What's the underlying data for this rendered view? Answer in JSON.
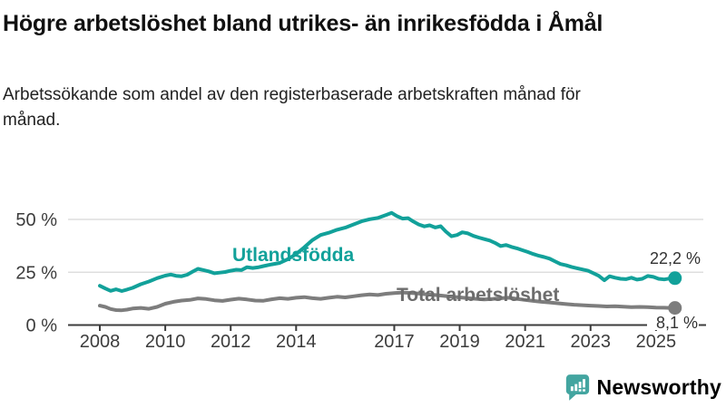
{
  "header": {
    "title": "Högre arbetslöshet bland utrikes- än inrikesfödda i Åmål",
    "subtitle": "Arbetssökande som andel av den registerbaserade arbetskraften månad för månad."
  },
  "footer": {
    "brand": "Newsworthy"
  },
  "colors": {
    "series_foreign": "#12a19a",
    "series_total": "#7d7d7d",
    "series_total_label": "#6d6d6d",
    "axis": "#3c3c3c",
    "grid": "#d8d8d8",
    "value_label": "#333333",
    "brand_icon": "#43a5a0",
    "brand_text": "#47808f",
    "background": "#ffffff"
  },
  "chart_data": {
    "type": "line",
    "title": "Högre arbetslöshet bland utrikes- än inrikesfödda i Åmål",
    "subtitle": "Arbetssökande som andel av den registerbaserade arbetskraften månad för månad.",
    "x_axis": {
      "range": [
        2008,
        2025.95
      ],
      "ticks": [
        {
          "value": 2008,
          "label": "2008"
        },
        {
          "value": 2010,
          "label": "2010"
        },
        {
          "value": 2012,
          "label": "2012"
        },
        {
          "value": 2014,
          "label": "2014"
        },
        {
          "value": 2017,
          "label": "2017"
        },
        {
          "value": 2019,
          "label": "2019"
        },
        {
          "value": 2021,
          "label": "2021"
        },
        {
          "value": 2023,
          "label": "2023"
        },
        {
          "value": 2025,
          "label": "2025"
        }
      ]
    },
    "y_axis": {
      "range": [
        0,
        55
      ],
      "grid": true,
      "ticks": [
        {
          "value": 0,
          "label": "0 %"
        },
        {
          "value": 25,
          "label": "25 %"
        },
        {
          "value": 50,
          "label": "50 %"
        }
      ]
    },
    "legend_position": "inline-labels",
    "series": [
      {
        "name": "Utlandsfödda",
        "color": "#12a19a",
        "end_label": "22,2 %",
        "end_value": 22.2,
        "points": [
          [
            2008.0,
            18.6
          ],
          [
            2008.17,
            17.3
          ],
          [
            2008.33,
            16.2
          ],
          [
            2008.5,
            16.9
          ],
          [
            2008.67,
            16.1
          ],
          [
            2008.83,
            16.8
          ],
          [
            2009.0,
            17.6
          ],
          [
            2009.25,
            19.3
          ],
          [
            2009.5,
            20.6
          ],
          [
            2009.75,
            22.2
          ],
          [
            2010.0,
            23.4
          ],
          [
            2010.17,
            23.9
          ],
          [
            2010.33,
            23.3
          ],
          [
            2010.5,
            23.1
          ],
          [
            2010.67,
            23.8
          ],
          [
            2010.83,
            25.2
          ],
          [
            2011.0,
            26.6
          ],
          [
            2011.17,
            26.0
          ],
          [
            2011.33,
            25.4
          ],
          [
            2011.5,
            24.5
          ],
          [
            2011.67,
            24.8
          ],
          [
            2011.83,
            25.1
          ],
          [
            2012.0,
            25.7
          ],
          [
            2012.17,
            26.2
          ],
          [
            2012.33,
            26.0
          ],
          [
            2012.5,
            27.4
          ],
          [
            2012.67,
            27.0
          ],
          [
            2012.83,
            27.3
          ],
          [
            2013.0,
            27.9
          ],
          [
            2013.25,
            28.7
          ],
          [
            2013.5,
            29.4
          ],
          [
            2013.75,
            31.2
          ],
          [
            2014.0,
            33.6
          ],
          [
            2014.25,
            36.8
          ],
          [
            2014.5,
            40.2
          ],
          [
            2014.75,
            42.6
          ],
          [
            2015.0,
            43.7
          ],
          [
            2015.25,
            45.1
          ],
          [
            2015.5,
            46.1
          ],
          [
            2015.75,
            47.6
          ],
          [
            2016.0,
            49.1
          ],
          [
            2016.25,
            50.1
          ],
          [
            2016.5,
            50.7
          ],
          [
            2016.75,
            52.1
          ],
          [
            2016.92,
            53.1
          ],
          [
            2017.08,
            51.6
          ],
          [
            2017.25,
            50.4
          ],
          [
            2017.42,
            50.6
          ],
          [
            2017.58,
            49.0
          ],
          [
            2017.75,
            47.6
          ],
          [
            2017.92,
            46.7
          ],
          [
            2018.08,
            47.2
          ],
          [
            2018.25,
            46.2
          ],
          [
            2018.42,
            46.8
          ],
          [
            2018.58,
            44.2
          ],
          [
            2018.75,
            42.0
          ],
          [
            2018.92,
            42.6
          ],
          [
            2019.08,
            43.9
          ],
          [
            2019.25,
            43.4
          ],
          [
            2019.42,
            42.2
          ],
          [
            2019.58,
            41.4
          ],
          [
            2019.75,
            40.7
          ],
          [
            2019.92,
            40.0
          ],
          [
            2020.08,
            38.9
          ],
          [
            2020.25,
            37.4
          ],
          [
            2020.42,
            37.9
          ],
          [
            2020.58,
            37.0
          ],
          [
            2020.75,
            36.3
          ],
          [
            2020.92,
            35.4
          ],
          [
            2021.08,
            34.6
          ],
          [
            2021.25,
            33.6
          ],
          [
            2021.42,
            32.8
          ],
          [
            2021.58,
            32.2
          ],
          [
            2021.75,
            31.4
          ],
          [
            2021.92,
            30.1
          ],
          [
            2022.08,
            28.9
          ],
          [
            2022.25,
            28.3
          ],
          [
            2022.42,
            27.5
          ],
          [
            2022.58,
            26.9
          ],
          [
            2022.75,
            26.3
          ],
          [
            2022.92,
            25.7
          ],
          [
            2023.08,
            24.6
          ],
          [
            2023.25,
            23.3
          ],
          [
            2023.42,
            21.2
          ],
          [
            2023.58,
            23.1
          ],
          [
            2023.75,
            22.4
          ],
          [
            2023.92,
            21.9
          ],
          [
            2024.08,
            21.7
          ],
          [
            2024.25,
            22.4
          ],
          [
            2024.42,
            21.5
          ],
          [
            2024.58,
            21.9
          ],
          [
            2024.75,
            23.2
          ],
          [
            2024.92,
            22.8
          ],
          [
            2025.08,
            21.9
          ],
          [
            2025.25,
            21.6
          ],
          [
            2025.42,
            22.0
          ],
          [
            2025.58,
            22.2
          ]
        ]
      },
      {
        "name": "Total arbetslöshet",
        "color": "#7d7d7d",
        "end_label": "8,1 %",
        "end_value": 8.1,
        "points": [
          [
            2008.0,
            9.2
          ],
          [
            2008.17,
            8.6
          ],
          [
            2008.33,
            7.6
          ],
          [
            2008.5,
            7.1
          ],
          [
            2008.67,
            7.0
          ],
          [
            2008.83,
            7.3
          ],
          [
            2009.0,
            7.8
          ],
          [
            2009.25,
            8.1
          ],
          [
            2009.5,
            7.7
          ],
          [
            2009.75,
            8.6
          ],
          [
            2010.0,
            10.1
          ],
          [
            2010.25,
            11.0
          ],
          [
            2010.5,
            11.6
          ],
          [
            2010.75,
            11.9
          ],
          [
            2011.0,
            12.6
          ],
          [
            2011.25,
            12.3
          ],
          [
            2011.5,
            11.7
          ],
          [
            2011.75,
            11.4
          ],
          [
            2012.0,
            12.0
          ],
          [
            2012.25,
            12.5
          ],
          [
            2012.5,
            12.1
          ],
          [
            2012.75,
            11.6
          ],
          [
            2013.0,
            11.5
          ],
          [
            2013.25,
            12.2
          ],
          [
            2013.5,
            12.7
          ],
          [
            2013.75,
            12.4
          ],
          [
            2014.0,
            12.9
          ],
          [
            2014.25,
            13.2
          ],
          [
            2014.5,
            12.7
          ],
          [
            2014.75,
            12.4
          ],
          [
            2015.0,
            12.9
          ],
          [
            2015.25,
            13.4
          ],
          [
            2015.5,
            13.1
          ],
          [
            2015.75,
            13.6
          ],
          [
            2016.0,
            14.1
          ],
          [
            2016.25,
            14.5
          ],
          [
            2016.5,
            14.2
          ],
          [
            2016.75,
            14.8
          ],
          [
            2017.0,
            15.1
          ],
          [
            2017.25,
            15.4
          ],
          [
            2017.5,
            15.2
          ],
          [
            2017.75,
            14.9
          ],
          [
            2018.0,
            14.5
          ],
          [
            2018.25,
            14.2
          ],
          [
            2018.5,
            13.8
          ],
          [
            2018.75,
            13.4
          ],
          [
            2019.0,
            13.1
          ],
          [
            2019.25,
            12.7
          ],
          [
            2019.5,
            12.4
          ],
          [
            2019.75,
            12.1
          ],
          [
            2020.0,
            12.3
          ],
          [
            2020.25,
            12.7
          ],
          [
            2020.5,
            12.9
          ],
          [
            2020.75,
            12.4
          ],
          [
            2021.0,
            11.9
          ],
          [
            2021.25,
            11.4
          ],
          [
            2021.5,
            11.0
          ],
          [
            2021.75,
            10.7
          ],
          [
            2022.0,
            10.3
          ],
          [
            2022.25,
            9.9
          ],
          [
            2022.5,
            9.6
          ],
          [
            2022.75,
            9.4
          ],
          [
            2023.0,
            9.2
          ],
          [
            2023.25,
            9.0
          ],
          [
            2023.5,
            8.8
          ],
          [
            2023.75,
            8.9
          ],
          [
            2024.0,
            8.7
          ],
          [
            2024.25,
            8.5
          ],
          [
            2024.5,
            8.6
          ],
          [
            2024.75,
            8.5
          ],
          [
            2025.0,
            8.3
          ],
          [
            2025.25,
            8.2
          ],
          [
            2025.42,
            8.1
          ],
          [
            2025.58,
            8.1
          ]
        ]
      }
    ]
  }
}
